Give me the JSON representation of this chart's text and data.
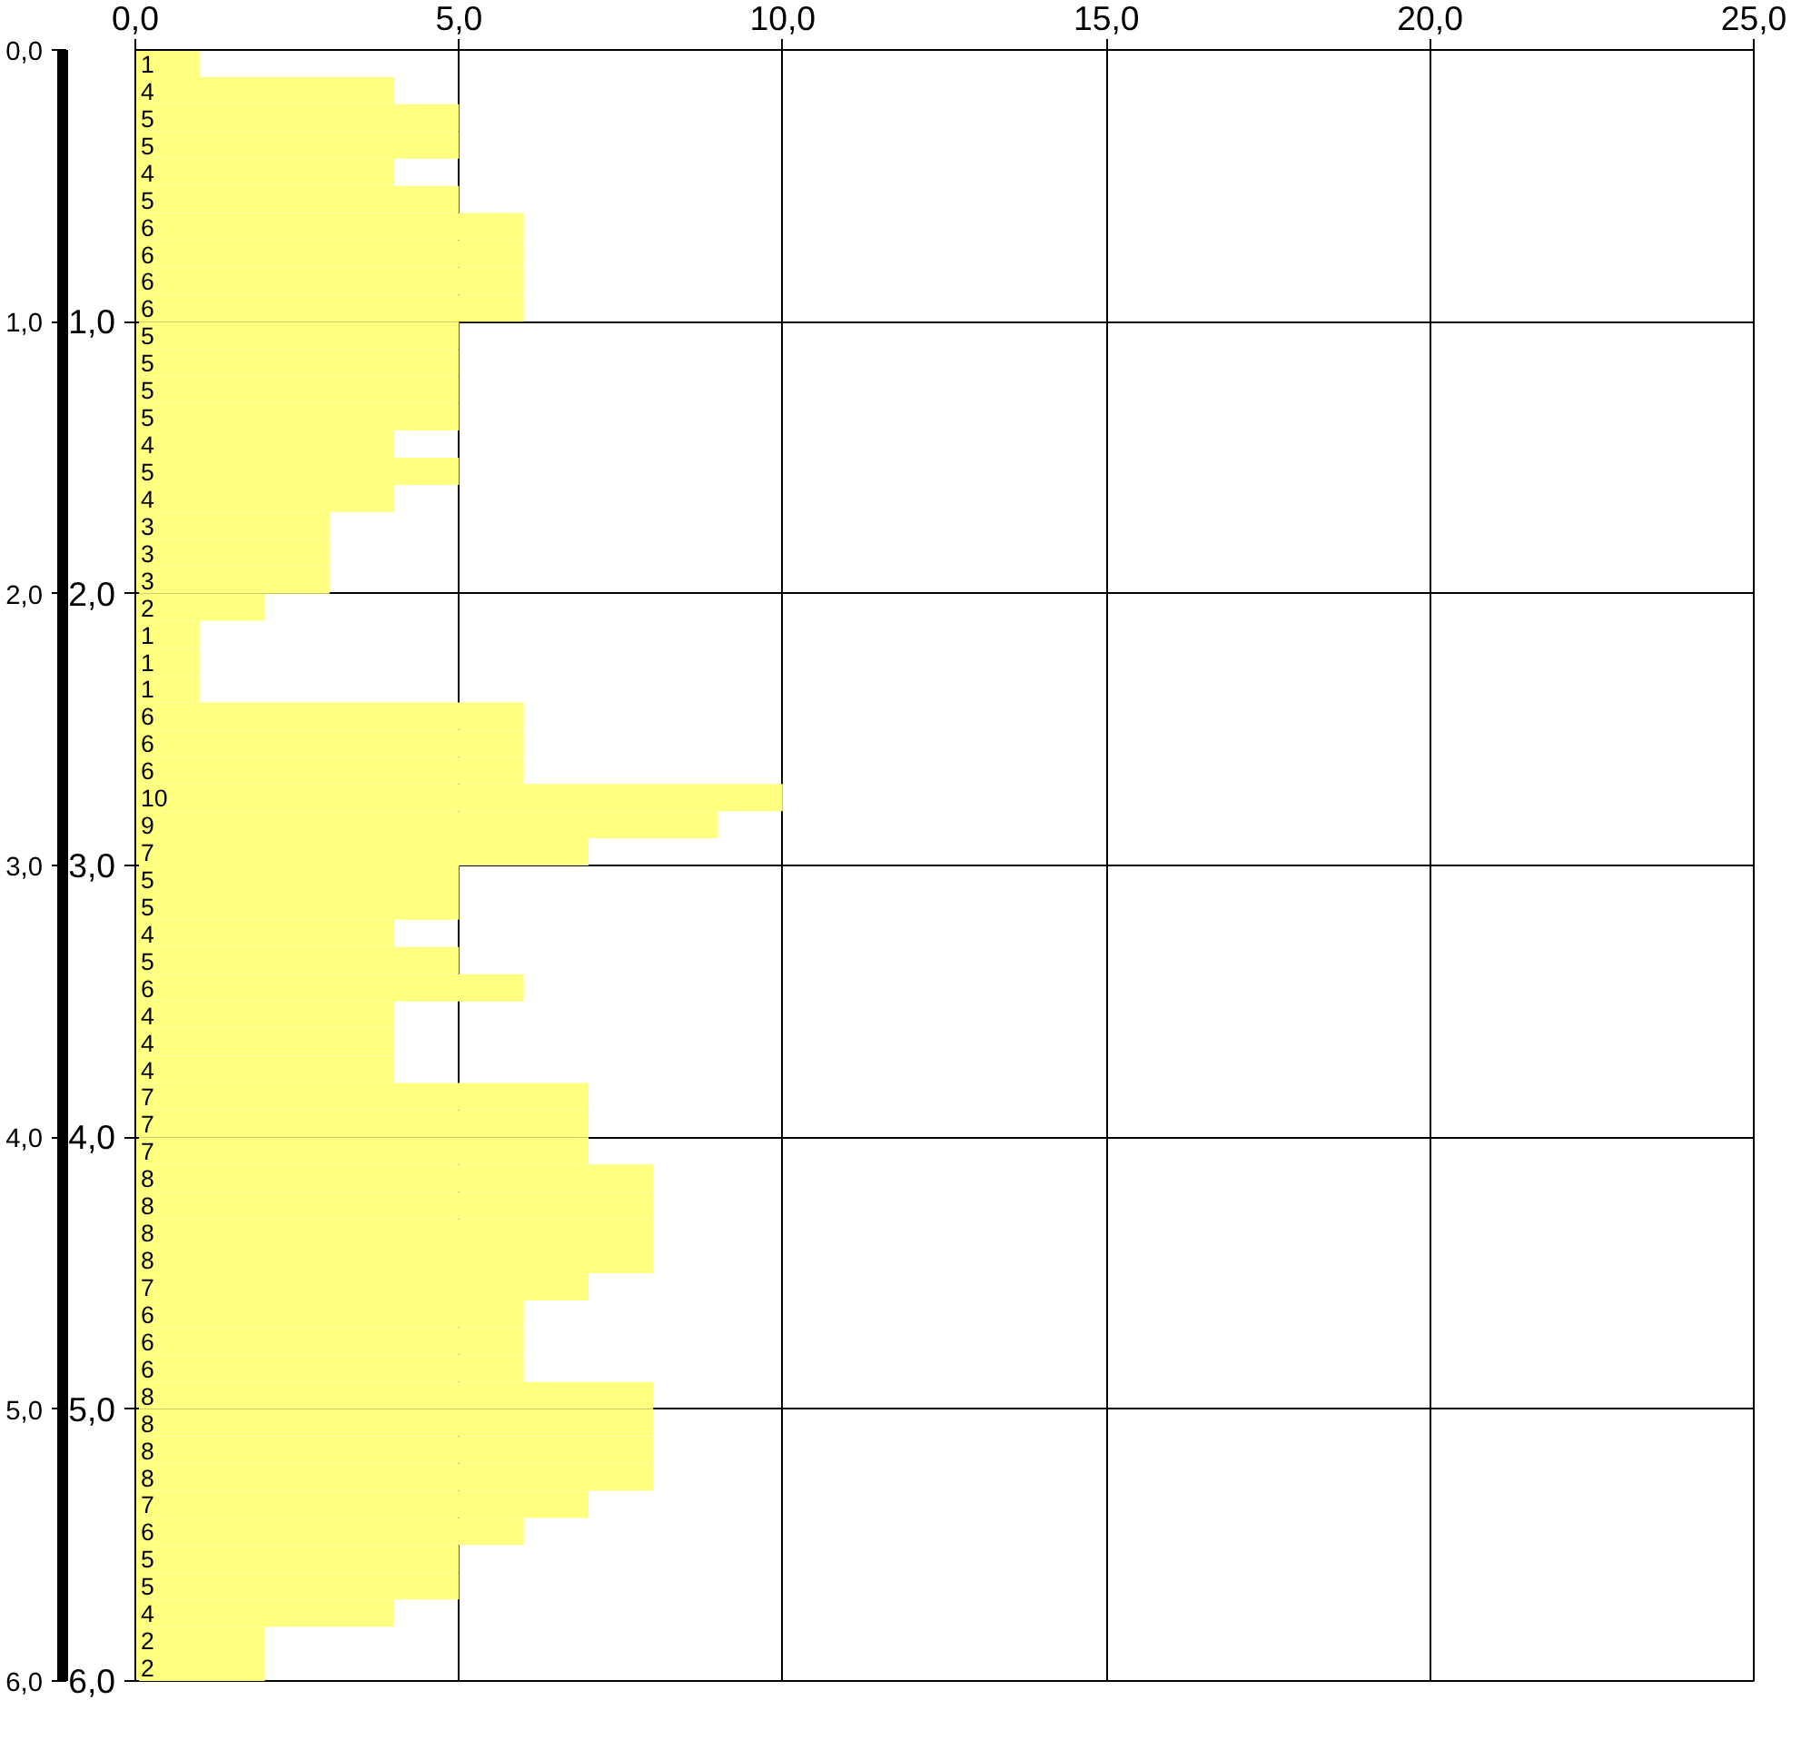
{
  "chart_data": {
    "type": "bar",
    "orientation": "horizontal",
    "color": "#ffff80",
    "data_labels": true,
    "x": [
      0.05,
      0.15,
      0.25,
      0.35,
      0.45,
      0.55,
      0.65,
      0.75,
      0.85,
      0.95,
      1.05,
      1.15,
      1.25,
      1.35,
      1.45,
      1.55,
      1.65,
      1.75,
      1.85,
      1.95,
      2.05,
      2.15,
      2.25,
      2.35,
      2.45,
      2.55,
      2.65,
      2.75,
      2.85,
      2.95,
      3.05,
      3.15,
      3.25,
      3.35,
      3.45,
      3.55,
      3.65,
      3.75,
      3.85,
      3.95,
      4.05,
      4.15,
      4.25,
      4.35,
      4.45,
      4.55,
      4.65,
      4.75,
      4.85,
      4.95,
      5.05,
      5.15,
      5.25,
      5.35,
      5.45,
      5.55,
      5.65,
      5.75,
      5.85,
      5.95
    ],
    "values": [
      1,
      4,
      5,
      5,
      4,
      5,
      6,
      6,
      6,
      6,
      5,
      5,
      5,
      5,
      4,
      5,
      4,
      3,
      3,
      3,
      2,
      1,
      1,
      1,
      6,
      6,
      6,
      10,
      9,
      7,
      5,
      5,
      4,
      5,
      6,
      4,
      4,
      4,
      7,
      7,
      7,
      8,
      8,
      8,
      8,
      7,
      6,
      6,
      6,
      8,
      8,
      8,
      8,
      7,
      6,
      5,
      5,
      4,
      2,
      2
    ],
    "xlim": [
      0,
      25
    ],
    "xticks": [
      {
        "value": 0,
        "label": "0,0"
      },
      {
        "value": 5,
        "label": "5,0"
      },
      {
        "value": 10,
        "label": "10,0"
      },
      {
        "value": 15,
        "label": "15,0"
      },
      {
        "value": 20,
        "label": "20,0"
      },
      {
        "value": 25,
        "label": "25,0"
      }
    ],
    "ylim": [
      6,
      0
    ],
    "yticks": [
      {
        "value": 1,
        "label": "1,0"
      },
      {
        "value": 2,
        "label": "2,0"
      },
      {
        "value": 3,
        "label": "3,0"
      },
      {
        "value": 4,
        "label": "4,0"
      },
      {
        "value": 5,
        "label": "5,0"
      },
      {
        "value": 6,
        "label": "6,0"
      }
    ],
    "y2lim": [
      6,
      0
    ],
    "y2ticks": [
      {
        "value": 0,
        "label": "0,0"
      },
      {
        "value": 1,
        "label": "1,0"
      },
      {
        "value": 2,
        "label": "2,0"
      },
      {
        "value": 3,
        "label": "3,0"
      },
      {
        "value": 4,
        "label": "4,0"
      },
      {
        "value": 5,
        "label": "5,0"
      },
      {
        "value": 6,
        "label": "6,0"
      }
    ],
    "grid": true
  }
}
